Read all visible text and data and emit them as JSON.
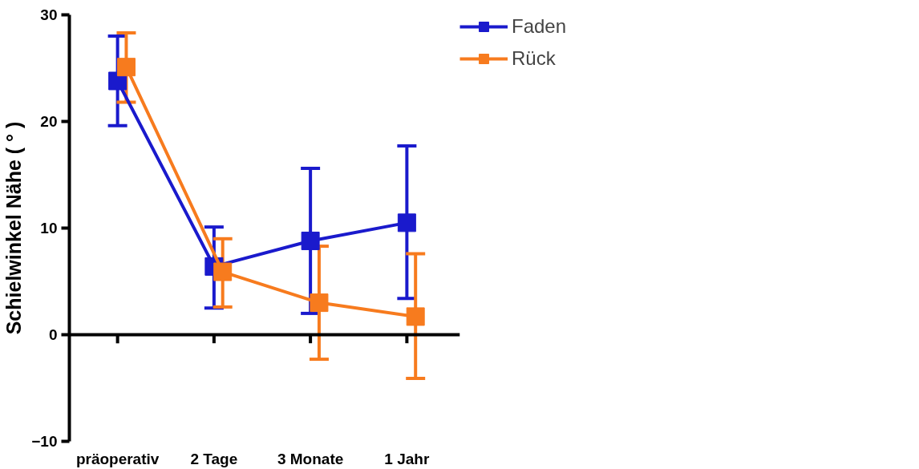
{
  "chart_data": {
    "type": "line",
    "ylabel": "Schielwinkel Nähe ( ° )",
    "categories": [
      "präoperativ",
      "2 Tage",
      "3 Monate",
      "1 Jahr"
    ],
    "series": [
      {
        "name": "Faden",
        "color": "#1a1acc",
        "values": [
          23.8,
          6.4,
          8.8,
          10.5
        ],
        "errors": [
          [
            19.6,
            28.0
          ],
          [
            2.5,
            10.1
          ],
          [
            2.0,
            15.6
          ],
          [
            3.4,
            17.7
          ]
        ]
      },
      {
        "name": "Rück",
        "color": "#f77b1e",
        "values": [
          25.1,
          5.9,
          3.0,
          1.7
        ],
        "errors": [
          [
            21.8,
            28.3
          ],
          [
            2.6,
            9.0
          ],
          [
            -2.3,
            8.3
          ],
          [
            -4.1,
            7.6
          ]
        ]
      }
    ],
    "ylim": [
      -10,
      30
    ],
    "yticks": [
      -10,
      0,
      10,
      20,
      30
    ],
    "grid": false,
    "legend": "top right",
    "marker": "square",
    "line_style": "solid",
    "ref_lines": [
      {
        "axis": "y",
        "value": 0
      }
    ]
  }
}
